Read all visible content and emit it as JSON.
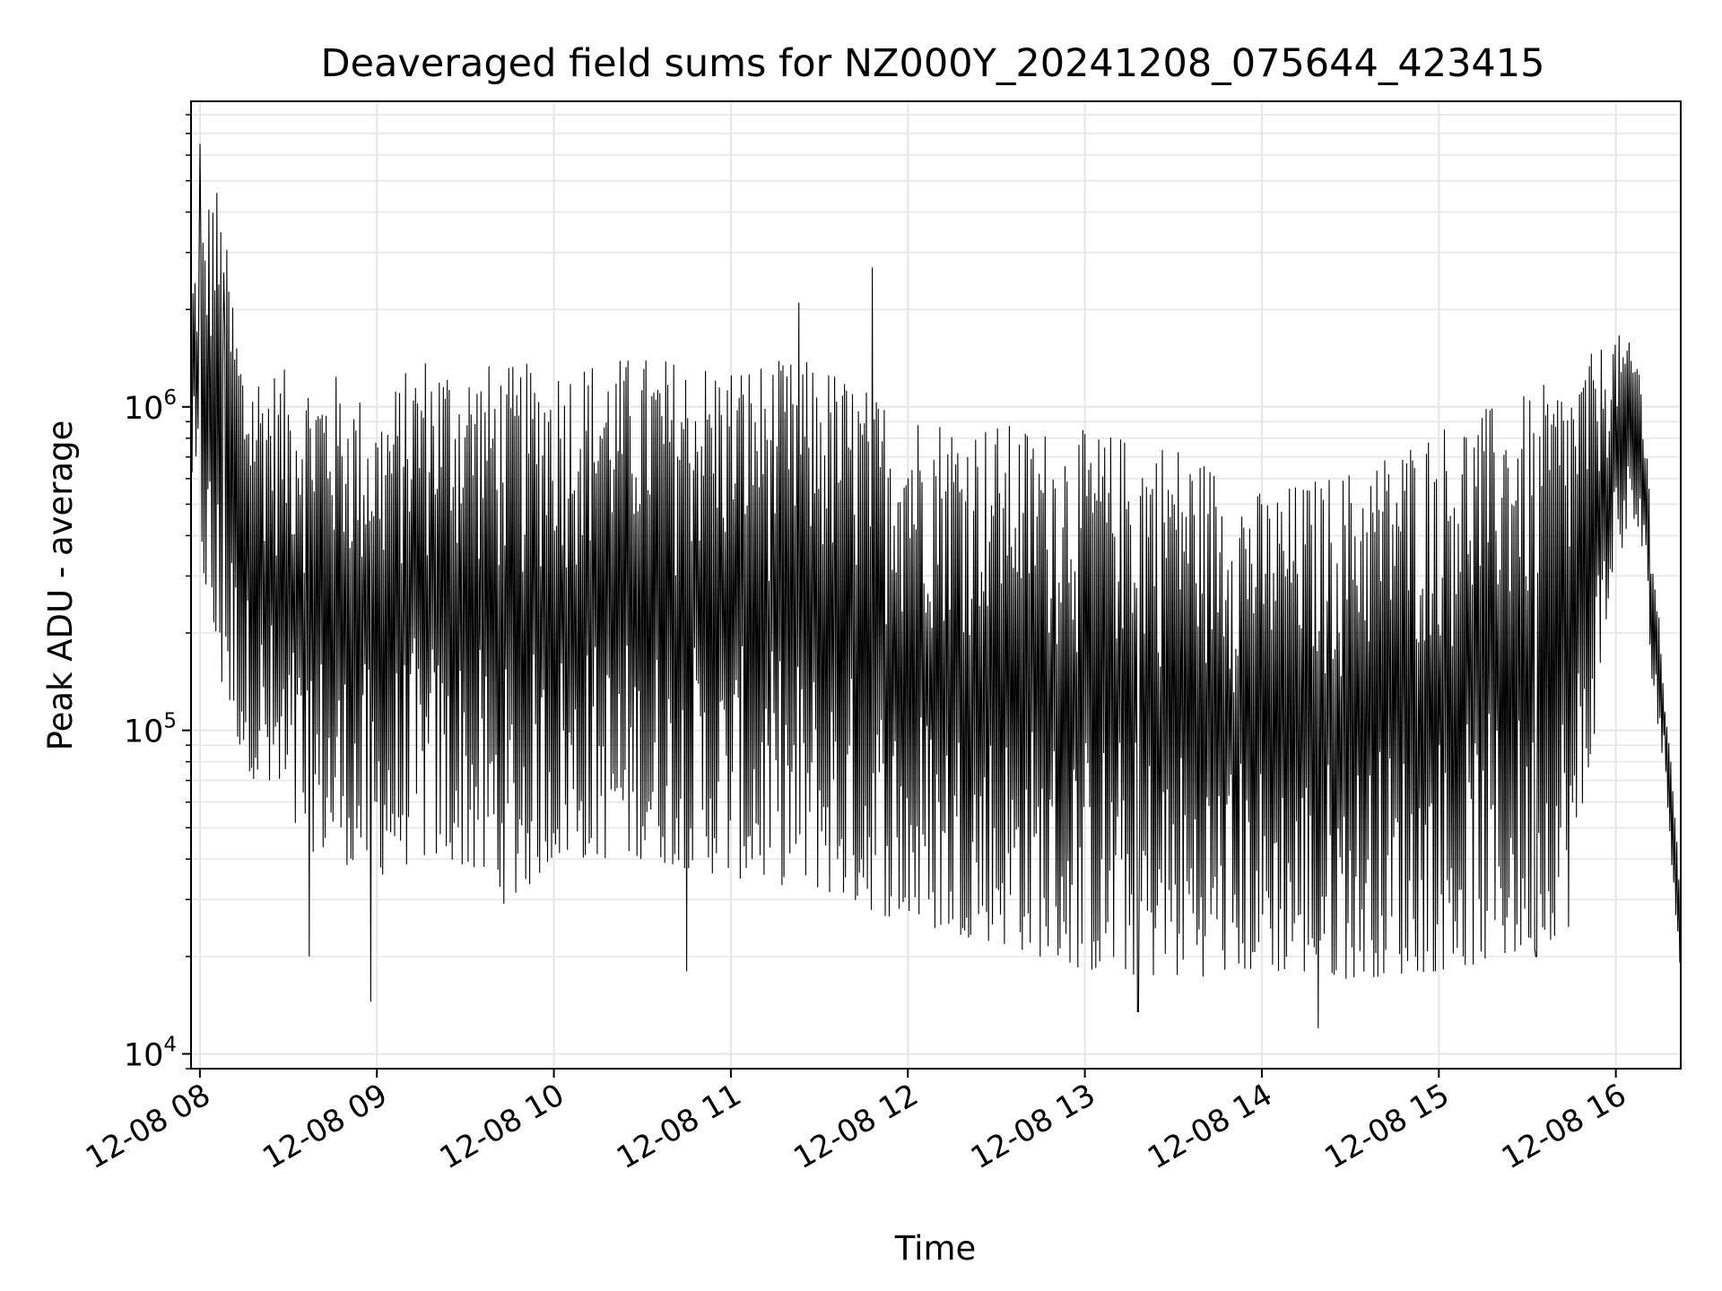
{
  "chart_data": {
    "type": "line",
    "title": "Deaveraged field sums for NZ000Y_20241208_075644_423415",
    "xlabel": "Time",
    "ylabel": "Peak ADU - average",
    "yscale": "log",
    "ylim": [
      9000,
      8800000
    ],
    "xlim": [
      "2024-12-08 07:57",
      "2024-12-08 16:22"
    ],
    "grid": true,
    "line_color": "#000000",
    "grid_color": "#e6e6e6",
    "x_ticks": [
      {
        "label": "12-08 08",
        "time": "2024-12-08 08:00"
      },
      {
        "label": "12-08 09",
        "time": "2024-12-08 09:00"
      },
      {
        "label": "12-08 10",
        "time": "2024-12-08 10:00"
      },
      {
        "label": "12-08 11",
        "time": "2024-12-08 11:00"
      },
      {
        "label": "12-08 12",
        "time": "2024-12-08 12:00"
      },
      {
        "label": "12-08 13",
        "time": "2024-12-08 13:00"
      },
      {
        "label": "12-08 14",
        "time": "2024-12-08 14:00"
      },
      {
        "label": "12-08 15",
        "time": "2024-12-08 15:00"
      },
      {
        "label": "12-08 16",
        "time": "2024-12-08 16:00"
      }
    ],
    "y_ticks": [
      {
        "base": "10",
        "exp": "4",
        "value": 10000
      },
      {
        "base": "10",
        "exp": "5",
        "value": 100000
      },
      {
        "base": "10",
        "exp": "6",
        "value": 1000000
      }
    ],
    "envelope": {
      "description": "Dense oscillating series; per-time upper and lower envelopes (values in ADU)",
      "time": [
        "07:57",
        "08:05",
        "08:15",
        "08:30",
        "08:45",
        "09:00",
        "09:15",
        "09:30",
        "09:45",
        "10:00",
        "10:30",
        "11:00",
        "11:30",
        "12:00",
        "12:30",
        "13:00",
        "13:30",
        "14:00",
        "14:30",
        "15:00",
        "15:30",
        "15:45",
        "16:00",
        "16:08",
        "16:12",
        "16:17",
        "16:22"
      ],
      "upper": [
        2500000,
        5500000,
        1400000,
        1300000,
        1300000,
        1000000,
        1500000,
        1400000,
        1350000,
        1400000,
        1450000,
        1400000,
        1400000,
        1000000,
        900000,
        850000,
        800000,
        550000,
        650000,
        900000,
        1100000,
        1300000,
        1700000,
        1500000,
        500000,
        120000,
        35000
      ],
      "lower": [
        600000,
        150000,
        80000,
        45000,
        40000,
        35000,
        40000,
        38000,
        28000,
        40000,
        40000,
        35000,
        32000,
        25000,
        22000,
        18000,
        17000,
        18000,
        17000,
        18000,
        20000,
        25000,
        350000,
        400000,
        150000,
        65000,
        17000
      ]
    },
    "spikes": [
      {
        "time": "2024-12-08 08:00",
        "value": 6500000
      },
      {
        "time": "2024-12-08 08:08",
        "value": 2600000
      },
      {
        "time": "2024-12-08 11:23",
        "value": 2100000
      },
      {
        "time": "2024-12-08 11:48",
        "value": 2700000
      },
      {
        "time": "2024-12-08 08:37",
        "value": 20000
      },
      {
        "time": "2024-12-08 08:58",
        "value": 14500
      },
      {
        "time": "2024-12-08 10:45",
        "value": 18000
      },
      {
        "time": "2024-12-08 13:18",
        "value": 13500
      },
      {
        "time": "2024-12-08 14:19",
        "value": 12000
      },
      {
        "time": "2024-12-08 15:33",
        "value": 20000
      }
    ]
  }
}
